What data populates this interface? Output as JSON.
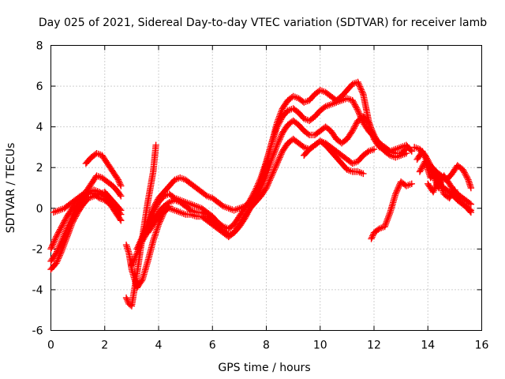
{
  "chart_data": {
    "type": "scatter",
    "title": "Day 025 of 2021, Sidereal Day-to-day VTEC variation (SDTVAR) for receiver lamb",
    "xlabel": "GPS time / hours",
    "ylabel": "SDTVAR / TECUs",
    "xlim": [
      0,
      16
    ],
    "ylim": [
      -6,
      8
    ],
    "xticks": [
      "0",
      "2",
      "4",
      "6",
      "8",
      "10",
      "12",
      "14",
      "16"
    ],
    "yticks": [
      "-6",
      "-4",
      "-2",
      "0",
      "2",
      "4",
      "6",
      "8"
    ],
    "grid": true,
    "marker": "+",
    "color": "#ff0000",
    "series": [
      {
        "x": [
          0.0,
          0.2,
          0.4,
          0.6,
          0.8,
          1.0,
          1.2,
          1.4,
          1.6,
          1.8,
          2.0,
          2.2,
          2.4,
          2.6
        ],
        "y": [
          -2.0,
          -1.4,
          -0.9,
          -0.4,
          0.0,
          0.3,
          0.6,
          0.8,
          0.7,
          0.5,
          0.4,
          0.2,
          -0.2,
          -0.6
        ]
      },
      {
        "x": [
          0.0,
          0.2,
          0.4,
          0.6,
          0.8,
          1.0,
          1.2,
          1.4,
          1.6,
          1.8,
          2.0,
          2.2,
          2.4,
          2.6
        ],
        "y": [
          -2.6,
          -2.2,
          -1.6,
          -1.0,
          -0.4,
          0.1,
          0.5,
          0.8,
          0.9,
          0.8,
          0.6,
          0.3,
          0.0,
          -0.3
        ]
      },
      {
        "x": [
          0.0,
          0.2,
          0.4,
          0.6,
          0.8,
          1.0,
          1.2,
          1.4,
          1.6,
          1.8,
          2.0,
          2.2,
          2.4,
          2.6
        ],
        "y": [
          -3.0,
          -2.7,
          -2.1,
          -1.4,
          -0.7,
          -0.2,
          0.2,
          0.5,
          0.6,
          0.7,
          0.8,
          0.5,
          0.2,
          -0.1
        ]
      },
      {
        "x": [
          0.1,
          0.3,
          0.5,
          0.7,
          0.9,
          1.1,
          1.3,
          1.5,
          1.7,
          1.9,
          2.1,
          2.3,
          2.5,
          2.6
        ],
        "y": [
          -0.2,
          -0.1,
          0.0,
          0.2,
          0.4,
          0.6,
          0.8,
          1.2,
          1.6,
          1.5,
          1.3,
          1.1,
          0.8,
          0.6
        ]
      },
      {
        "x": [
          1.3,
          1.5,
          1.7,
          1.9,
          2.1,
          2.3,
          2.5,
          2.6
        ],
        "y": [
          2.2,
          2.5,
          2.7,
          2.6,
          2.2,
          1.8,
          1.4,
          1.1
        ]
      },
      {
        "x": [
          2.8,
          2.9,
          3.0,
          3.2,
          3.4,
          3.6,
          3.8,
          3.9
        ],
        "y": [
          -4.4,
          -4.7,
          -4.8,
          -3.2,
          -1.4,
          0.3,
          1.8,
          3.1
        ]
      },
      {
        "x": [
          2.8,
          2.9,
          3.0,
          3.2,
          3.4,
          3.6,
          3.8,
          4.0,
          4.2,
          4.4
        ],
        "y": [
          -1.8,
          -2.2,
          -3.0,
          -3.9,
          -3.5,
          -2.6,
          -1.6,
          -0.8,
          -0.2,
          0.1
        ]
      },
      {
        "x": [
          3.0,
          3.2,
          3.4,
          3.6,
          3.8,
          4.0,
          4.2,
          4.4,
          4.6,
          4.8,
          5.0,
          5.2,
          5.4,
          5.6,
          5.8,
          6.0,
          6.2,
          6.4,
          6.6,
          6.8,
          7.0,
          7.2,
          7.4,
          7.6,
          7.8,
          8.0,
          8.2,
          8.4,
          8.6,
          8.8,
          9.0,
          9.2,
          9.4,
          9.6,
          9.8,
          10.0,
          10.2,
          10.4,
          10.6,
          10.8,
          11.0,
          11.2,
          11.4,
          11.6,
          11.8,
          12.0,
          12.2,
          12.4,
          12.6,
          12.8,
          13.0,
          13.2,
          13.4
        ],
        "y": [
          -2.8,
          -2.2,
          -1.5,
          -0.7,
          0.0,
          0.5,
          0.8,
          1.1,
          1.4,
          1.5,
          1.4,
          1.2,
          1.0,
          0.8,
          0.6,
          0.5,
          0.3,
          0.1,
          0.0,
          -0.1,
          0.0,
          0.1,
          0.3,
          0.7,
          1.3,
          2.2,
          3.2,
          4.2,
          4.9,
          5.3,
          5.5,
          5.4,
          5.2,
          5.3,
          5.6,
          5.8,
          5.7,
          5.5,
          5.3,
          5.5,
          5.8,
          6.1,
          6.2,
          5.6,
          4.3,
          3.4,
          3.0,
          2.9,
          2.8,
          2.9,
          3.0,
          3.1,
          2.8
        ]
      },
      {
        "x": [
          3.2,
          3.4,
          3.6,
          3.8,
          4.0,
          4.2,
          4.4,
          4.6,
          4.8,
          5.0,
          5.2,
          5.4,
          5.6,
          5.8,
          6.0,
          6.2,
          6.4,
          6.6,
          6.8,
          7.0,
          7.2,
          7.4,
          7.6,
          7.8,
          8.0,
          8.2,
          8.4,
          8.6,
          8.8,
          9.0,
          9.2,
          9.4,
          9.6,
          9.8,
          10.0,
          10.2,
          10.4,
          10.6,
          10.8,
          11.0,
          11.2,
          11.4,
          11.6,
          11.8,
          12.0,
          12.2,
          12.4,
          12.6,
          12.8,
          13.0,
          13.2
        ],
        "y": [
          -2.0,
          -1.4,
          -0.8,
          -0.2,
          0.3,
          0.6,
          0.7,
          0.5,
          0.4,
          0.3,
          0.2,
          0.1,
          0.0,
          -0.2,
          -0.4,
          -0.7,
          -0.9,
          -1.0,
          -0.8,
          -0.4,
          0.0,
          0.4,
          0.9,
          1.5,
          2.3,
          3.2,
          4.0,
          4.5,
          4.8,
          4.9,
          4.7,
          4.4,
          4.3,
          4.5,
          4.8,
          5.0,
          5.1,
          5.2,
          5.3,
          5.4,
          5.3,
          4.8,
          4.2,
          3.8,
          3.5,
          3.2,
          3.0,
          2.8,
          2.7,
          2.7,
          2.9
        ]
      },
      {
        "x": [
          3.4,
          3.6,
          3.8,
          4.0,
          4.2,
          4.4,
          4.6,
          4.8,
          5.0,
          5.2,
          5.4,
          5.6,
          5.8,
          6.0,
          6.2,
          6.4,
          6.6,
          6.8,
          7.0,
          7.2,
          7.4,
          7.6,
          7.8,
          8.0,
          8.2,
          8.4,
          8.6,
          8.8,
          9.0,
          9.2,
          9.4,
          9.6,
          9.8,
          10.0,
          10.2,
          10.4,
          10.6,
          10.8,
          11.0,
          11.2,
          11.4,
          11.6,
          11.8,
          12.0,
          12.2,
          12.4,
          12.6,
          12.8,
          13.0,
          13.2
        ],
        "y": [
          -1.6,
          -1.1,
          -0.6,
          -0.2,
          0.1,
          0.3,
          0.4,
          0.3,
          0.1,
          -0.1,
          -0.2,
          -0.2,
          -0.3,
          -0.6,
          -0.9,
          -1.1,
          -1.3,
          -1.2,
          -0.9,
          -0.5,
          0.0,
          0.5,
          1.0,
          1.6,
          2.4,
          3.1,
          3.7,
          4.1,
          4.3,
          4.1,
          3.8,
          3.6,
          3.6,
          3.8,
          4.0,
          3.8,
          3.4,
          3.2,
          3.4,
          3.8,
          4.3,
          4.5,
          4.2,
          3.6,
          3.1,
          2.8,
          2.6,
          2.5,
          2.6,
          2.7
        ]
      },
      {
        "x": [
          3.6,
          3.8,
          4.0,
          4.2,
          4.4,
          4.6,
          4.8,
          5.0,
          5.2,
          5.4,
          5.6,
          5.8,
          6.0,
          6.2,
          6.4,
          6.6,
          6.8,
          7.0,
          7.2,
          7.4,
          7.6,
          7.8,
          8.0,
          8.2,
          8.4,
          8.6,
          8.8,
          9.0,
          9.2,
          9.4,
          9.6,
          9.8,
          10.0,
          10.2,
          10.4,
          10.6,
          10.8,
          11.0,
          11.2,
          11.4,
          11.6,
          11.8,
          12.0
        ],
        "y": [
          -1.2,
          -0.8,
          -0.4,
          -0.1,
          0.0,
          -0.1,
          -0.2,
          -0.3,
          -0.3,
          -0.4,
          -0.4,
          -0.6,
          -0.8,
          -1.0,
          -1.2,
          -1.4,
          -1.2,
          -0.8,
          -0.4,
          0.0,
          0.3,
          0.6,
          1.0,
          1.6,
          2.2,
          2.8,
          3.2,
          3.4,
          3.2,
          3.0,
          2.9,
          3.1,
          3.3,
          3.2,
          3.0,
          2.8,
          2.6,
          2.4,
          2.2,
          2.3,
          2.6,
          2.8,
          2.9
        ]
      },
      {
        "x": [
          9.4,
          9.6,
          9.8,
          10.0,
          10.2,
          10.4,
          10.6,
          10.8,
          11.0,
          11.2,
          11.4,
          11.6
        ],
        "y": [
          2.6,
          2.9,
          3.1,
          3.3,
          3.1,
          2.8,
          2.5,
          2.2,
          1.9,
          1.8,
          1.8,
          1.7
        ]
      },
      {
        "x": [
          11.9,
          12.0,
          12.2,
          12.4,
          12.6,
          12.8,
          13.0,
          13.2,
          13.4
        ],
        "y": [
          -1.5,
          -1.2,
          -1.0,
          -0.9,
          -0.2,
          0.7,
          1.3,
          1.1,
          1.2
        ]
      },
      {
        "x": [
          13.5,
          13.7,
          13.9,
          14.1,
          14.3,
          14.5,
          14.7,
          14.9,
          15.1,
          15.3,
          15.5,
          15.6
        ],
        "y": [
          3.0,
          2.9,
          2.6,
          2.1,
          1.8,
          1.6,
          1.4,
          1.7,
          2.1,
          1.9,
          1.4,
          1.0
        ]
      },
      {
        "x": [
          13.6,
          13.8,
          14.0,
          14.2,
          14.4,
          14.6,
          14.8,
          15.0,
          15.2,
          15.4,
          15.6
        ],
        "y": [
          2.4,
          2.8,
          2.2,
          1.6,
          1.0,
          1.6,
          1.2,
          0.8,
          0.6,
          0.4,
          0.2
        ]
      },
      {
        "x": [
          13.7,
          13.9,
          14.1,
          14.3,
          14.5,
          14.7,
          14.9,
          15.1,
          15.3,
          15.5,
          15.6
        ],
        "y": [
          1.8,
          2.3,
          1.5,
          1.8,
          1.1,
          0.9,
          0.7,
          0.4,
          0.2,
          0.0,
          -0.1
        ]
      },
      {
        "x": [
          14.0,
          14.2,
          14.4,
          14.6,
          14.8,
          15.0,
          15.2,
          15.4,
          15.6
        ],
        "y": [
          1.2,
          0.8,
          1.4,
          0.7,
          0.5,
          0.9,
          0.3,
          0.1,
          -0.2
        ]
      }
    ]
  }
}
